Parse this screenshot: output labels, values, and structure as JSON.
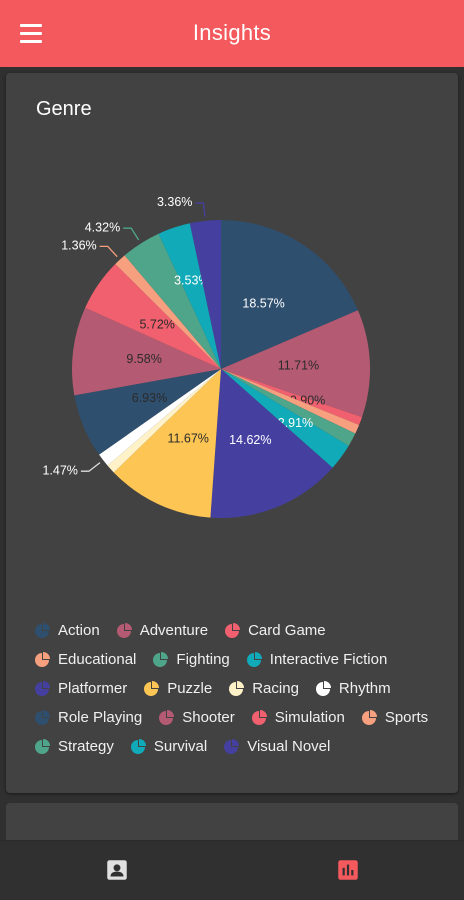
{
  "header": {
    "title": "Insights",
    "menu_icon": "menu-icon"
  },
  "card": {
    "title": "Genre"
  },
  "chart_data": {
    "type": "pie",
    "title": "Genre",
    "slices": [
      {
        "label": "Action",
        "value": 18.57,
        "color": "#2f4f6f",
        "value_label": "18.57%"
      },
      {
        "label": "Adventure",
        "value": 11.71,
        "color": "#b55a73",
        "value_label": "11.71%"
      },
      {
        "label": "Card Game",
        "value": 0.9,
        "color": "#f0606e",
        "value_label": "0.90%"
      },
      {
        "label": "Educational",
        "value": 1.0,
        "color": "#f7a07f",
        "value_label": ""
      },
      {
        "label": "Fighting",
        "value": 1.5,
        "color": "#4fa58a",
        "value_label": ""
      },
      {
        "label": "Interactive Fiction",
        "value": 2.91,
        "color": "#10aab9",
        "value_label": "2.91%"
      },
      {
        "label": "Platformer",
        "value": 14.62,
        "color": "#4540a0",
        "value_label": "14.62%"
      },
      {
        "label": "Puzzle",
        "value": 11.67,
        "color": "#fdc654",
        "value_label": "11.67%"
      },
      {
        "label": "Racing",
        "value": 1.0,
        "color": "#fff2c8",
        "value_label": ""
      },
      {
        "label": "Rhythm",
        "value": 1.47,
        "color": "#ffffff",
        "value_label": "1.47%"
      },
      {
        "label": "Role Playing",
        "value": 6.93,
        "color": "#2f4f6f",
        "value_label": "6.93%"
      },
      {
        "label": "Shooter",
        "value": 9.58,
        "color": "#b55a73",
        "value_label": "9.58%"
      },
      {
        "label": "Simulation",
        "value": 5.72,
        "color": "#f0606e",
        "value_label": "5.72%"
      },
      {
        "label": "Sports",
        "value": 1.36,
        "color": "#f7a07f",
        "value_label": "1.36%"
      },
      {
        "label": "Strategy",
        "value": 4.32,
        "color": "#4fa58a",
        "value_label": "4.32%"
      },
      {
        "label": "Survival",
        "value": 3.53,
        "color": "#10aab9",
        "value_label": "3.53%"
      },
      {
        "label": "Visual Novel",
        "value": 3.36,
        "color": "#4540a0",
        "value_label": "3.36%"
      }
    ],
    "legend_placement": "bottom"
  },
  "bottom_nav": {
    "items": [
      {
        "name": "profile",
        "icon": "account-box-icon",
        "color": "#e0e0e0"
      },
      {
        "name": "insights",
        "icon": "bar-chart-icon",
        "color": "#f3595d"
      }
    ]
  },
  "colors": {
    "accent": "#f3595d",
    "background": "#303030",
    "card": "#424242"
  }
}
